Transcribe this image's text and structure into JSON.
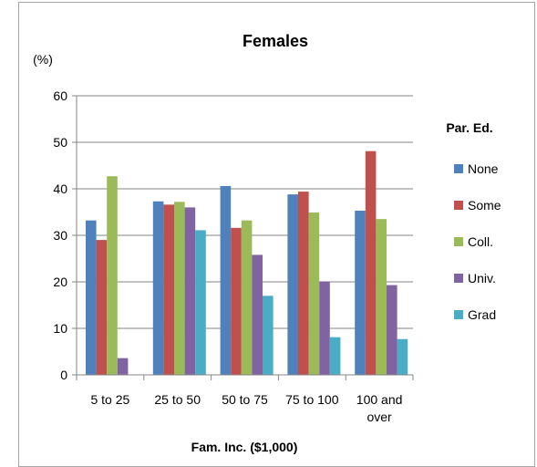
{
  "chart_data": {
    "type": "bar",
    "title": "Females",
    "ylabel": "(%)",
    "xlabel": "Fam. Inc. ($1,000)",
    "ylim": [
      0,
      60
    ],
    "yticks": [
      0,
      10,
      20,
      30,
      40,
      50,
      60
    ],
    "grid": true,
    "legend_title": "Par. Ed.",
    "legend_position": "right",
    "categories": [
      [
        "5 to 25"
      ],
      [
        "25 to 50"
      ],
      [
        "50 to 75"
      ],
      [
        "75 to 100"
      ],
      [
        "100 and",
        "over"
      ]
    ],
    "series": [
      {
        "name": "None",
        "color": "#4f81bd",
        "values": [
          33.2,
          37.3,
          40.6,
          38.8,
          35.3
        ]
      },
      {
        "name": "Some",
        "color": "#c0504d",
        "values": [
          29.0,
          36.6,
          31.6,
          39.4,
          48.1
        ]
      },
      {
        "name": "Coll.",
        "color": "#9bbb59",
        "values": [
          42.7,
          37.2,
          33.2,
          34.9,
          33.5
        ]
      },
      {
        "name": "Univ.",
        "color": "#8064a2",
        "values": [
          3.6,
          36.0,
          25.8,
          20.1,
          19.3
        ]
      },
      {
        "name": "Grad",
        "color": "#4bacc6",
        "values": [
          0,
          31.1,
          17.0,
          8.1,
          7.7
        ]
      }
    ]
  }
}
